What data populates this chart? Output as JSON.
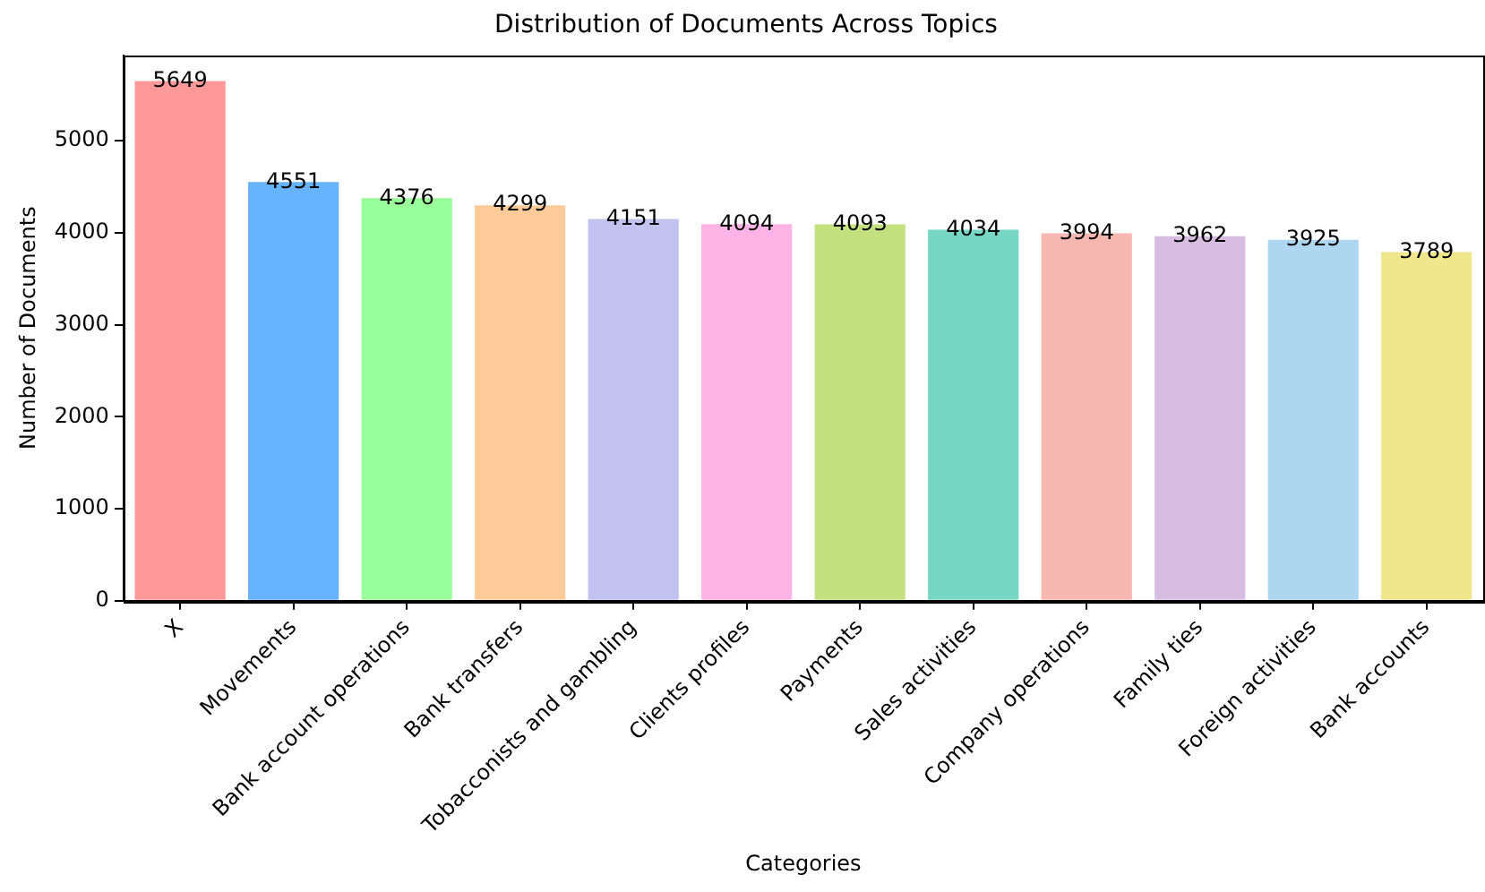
{
  "chart_data": {
    "type": "bar",
    "title": "Distribution of Documents Across Topics",
    "xlabel": "Categories",
    "ylabel": "Number of Documents",
    "categories": [
      "X",
      "Movements",
      "Bank account operations",
      "Bank transfers",
      "Tobacconists and gambling",
      "Clients profiles",
      "Payments",
      "Sales activities",
      "Company operations",
      "Family ties",
      "Foreign activities",
      "Bank accounts"
    ],
    "values": [
      5649,
      4551,
      4376,
      4299,
      4151,
      4094,
      4093,
      4034,
      3994,
      3962,
      3925,
      3789
    ],
    "colors": [
      "#ff9999",
      "#66b3ff",
      "#99ff99",
      "#ffcc99",
      "#c2c2f0",
      "#ffb3e6",
      "#c4e17f",
      "#76d7c4",
      "#f7b7b1",
      "#d7bde2",
      "#aed6f1",
      "#f0e68c"
    ],
    "ylim": [
      0,
      5931
    ],
    "yticks": [
      0,
      1000,
      2000,
      3000,
      4000,
      5000
    ],
    "grid": false,
    "legend": false,
    "data_labels": true
  }
}
